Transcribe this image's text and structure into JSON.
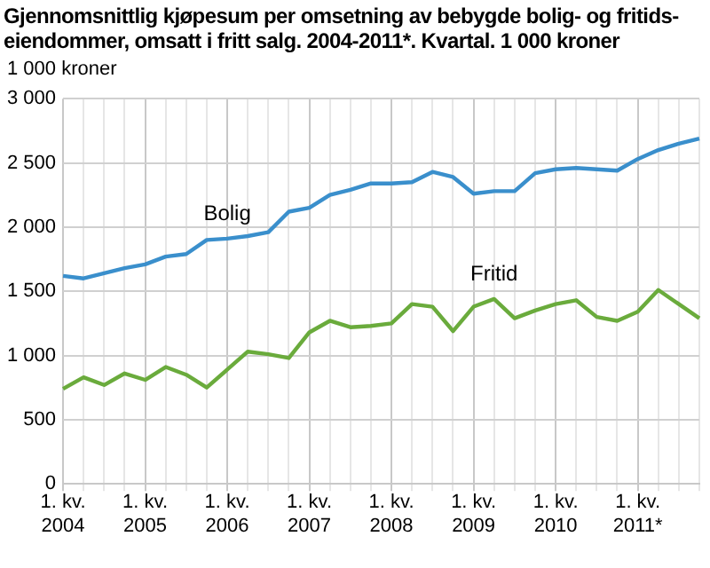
{
  "chart_data": {
    "type": "line",
    "title": "Gjennomsnittlig kjøpesum per omsetning av bebygde bolig- og fritids-eiendommer, omsatt i fritt salg. 2004-2011*. Kvartal. 1 000 kroner",
    "ylabel": "1 000 kroner",
    "categories": [
      "1. kv.\n2004",
      null,
      null,
      null,
      "1. kv.\n2005",
      null,
      null,
      null,
      "1. kv.\n2006",
      null,
      null,
      null,
      "1. kv.\n2007",
      null,
      null,
      null,
      "1. kv.\n2008",
      null,
      null,
      null,
      "1. kv.\n2009",
      null,
      null,
      null,
      "1. kv.\n2010",
      null,
      null,
      null,
      "1. kv.\n2011*",
      null,
      null,
      null
    ],
    "series": [
      {
        "name": "Bolig",
        "color": "#3a8fcc",
        "values": [
          1620,
          1600,
          1640,
          1680,
          1710,
          1770,
          1790,
          1900,
          1910,
          1930,
          1960,
          2120,
          2150,
          2250,
          2290,
          2340,
          2340,
          2350,
          2430,
          2390,
          2260,
          2280,
          2280,
          2420,
          2450,
          2460,
          2450,
          2440,
          2530,
          2600,
          2650,
          2690
        ]
      },
      {
        "name": "Fritid",
        "color": "#6aab3c",
        "values": [
          740,
          830,
          770,
          860,
          810,
          910,
          850,
          750,
          890,
          1030,
          1010,
          980,
          1180,
          1270,
          1220,
          1230,
          1250,
          1400,
          1380,
          1190,
          1380,
          1440,
          1290,
          1350,
          1400,
          1430,
          1300,
          1270,
          1340,
          1510,
          1400,
          1290
        ]
      }
    ],
    "ylim": [
      0,
      3000
    ],
    "yticks": [
      {
        "value": 0,
        "label": "0"
      },
      {
        "value": 500,
        "label": "500"
      },
      {
        "value": 1000,
        "label": "1 000"
      },
      {
        "value": 1500,
        "label": "1 500"
      },
      {
        "value": 2000,
        "label": "2 000"
      },
      {
        "value": 2500,
        "label": "2 500"
      },
      {
        "value": 3000,
        "label": "3 000"
      }
    ],
    "grid": true,
    "legend": false,
    "marker": "none",
    "line_style": "solid"
  }
}
